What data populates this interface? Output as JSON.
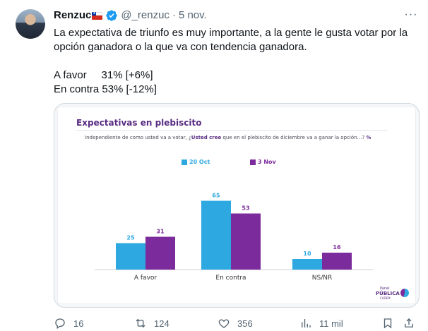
{
  "author": {
    "name": "Renzuc",
    "handle": "@_renzuc",
    "separator": "·",
    "date": "5 nov."
  },
  "tweet": {
    "line1": "La expectativa de triunfo es muy importante, a la gente le gusta votar por la",
    "line2": "opción ganadora o la que va con tendencia ganadora.",
    "line3": "A favor     31% [+6%]",
    "line4": "En contra 53% [-12%]"
  },
  "chart": {
    "subtitle_pre": "Independiente de como usted va a votar, ¿",
    "subtitle_bold": "Usted cree",
    "subtitle_post": " que en el plebiscito de diciembre va a ganar la opción…? ",
    "subtitle_pct": "%",
    "logo_top": "Panel",
    "logo_main": "PÚBLICA",
    "logo_bottom": "CADEM"
  },
  "chart_data": {
    "type": "bar",
    "title": "Expectativas en plebiscito",
    "categories": [
      "A favor",
      "En contra",
      "NS/NR"
    ],
    "series": [
      {
        "name": "20 Oct",
        "color": "#2ea8e0",
        "values": [
          25,
          65,
          10
        ]
      },
      {
        "name": "3 Nov",
        "color": "#7b2b9b",
        "values": [
          31,
          53,
          16
        ]
      }
    ],
    "ylim": [
      0,
      100
    ],
    "grid": false,
    "legend": "top-left"
  },
  "actions": {
    "replies": "16",
    "retweets": "124",
    "likes": "356",
    "views": "11 mil"
  },
  "icons": {
    "verified": "verified-badge-icon",
    "more": "more-icon",
    "reply": "reply-icon",
    "retweet": "retweet-icon",
    "like": "like-icon",
    "views": "views-icon",
    "bookmark": "bookmark-icon",
    "share": "share-icon"
  },
  "colors": {
    "verified": "#1d9bf0",
    "series1": "#2ea8e0",
    "series2": "#7b2b9b",
    "title": "#5a2d82"
  }
}
